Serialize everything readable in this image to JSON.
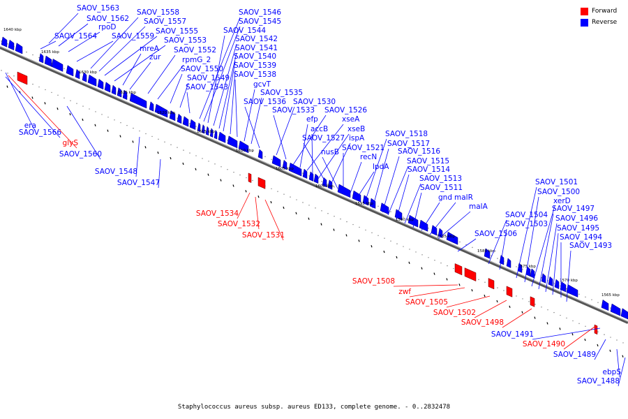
{
  "legend": {
    "forward": {
      "label": "Forward",
      "color": "#ff0000"
    },
    "reverse": {
      "label": "Reverse",
      "color": "#0000ff"
    }
  },
  "footer": "Staphylococcus aureus subsp. aureus ED133, complete genome. - 0..2832478",
  "ticks": [
    "1640 kbp",
    "1635 kbp",
    "1630 kbp",
    "1625 kbp",
    "1620 kbp",
    "1615 kbp",
    "1610 kbp",
    "1605 kbp",
    "1600 kbp",
    "1595 kbp",
    "1590 kbp",
    "1585 kbp",
    "1580 kbp",
    "1575 kbp",
    "1570 kbp",
    "1565 kbp"
  ],
  "reverse_labels": [
    "SAOV_1563",
    "SAOV_1562",
    "rpoD",
    "SAOV_1564",
    "SAOV_1558",
    "SAOV_1557",
    "SAOV_1559",
    "SAOV_1555",
    "SAOV_1553",
    "mreA",
    "zur",
    "SAOV_1552",
    "rpmG_2",
    "SAOV_1550",
    "SAOV_1549",
    "SAOV_1543",
    "SAOV_1546",
    "SAOV_1545",
    "SAOV_1544",
    "SAOV_1542",
    "SAOV_1541",
    "SAOV_1540",
    "SAOV_1539",
    "SAOV_1538",
    "gcvT",
    "SAOV_1535",
    "SAOV_1536",
    "SAOV_1530",
    "SAOV_1533",
    "SAOV_1526",
    "efp",
    "xseA",
    "accB",
    "xseB",
    "SAOV_1527",
    "ispA",
    "nusB",
    "SAOV_1521",
    "recN",
    "lpdA",
    "SAOV_1518",
    "SAOV_1517",
    "SAOV_1516",
    "SAOV_1515",
    "SAOV_1514",
    "SAOV_1513",
    "SAOV_1511",
    "gnd",
    "malR",
    "malA",
    "SAOV_1506",
    "SAOV_1504",
    "SAOV_1503",
    "SAOV_1501",
    "SAOV_1500",
    "xerD",
    "SAOV_1497",
    "SAOV_1496",
    "SAOV_1495",
    "SAOV_1494",
    "SAOV_1493",
    "era",
    "SAOV_1566",
    "SAOV_1560",
    "SAOV_1548",
    "SAOV_1547",
    "SAOV_1491",
    "SAOV_1489",
    "ebpS",
    "SAOV_1488"
  ],
  "forward_labels": [
    "glyS",
    "SAOV_1534",
    "SAOV_1532",
    "SAOV_1531",
    "SAOV_1508",
    "zwf",
    "SAOV_1505",
    "SAOV_1502",
    "SAOV_1498",
    "SAOV_1490"
  ]
}
